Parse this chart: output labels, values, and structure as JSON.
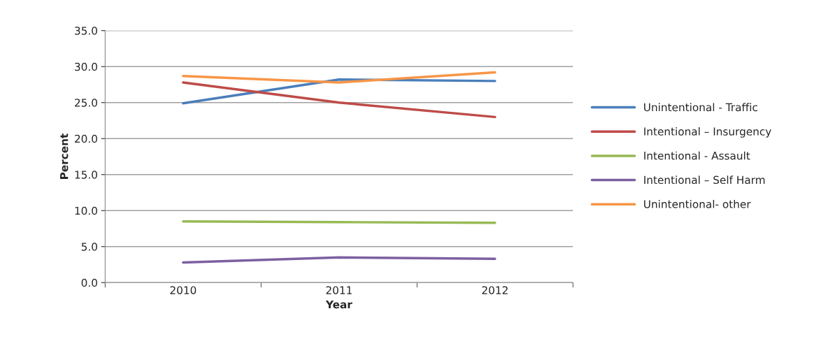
{
  "chart_data": {
    "type": "line",
    "xlabel": "Year",
    "ylabel": "Percent",
    "categories": [
      "2010",
      "2011",
      "2012"
    ],
    "series": [
      {
        "name": "Unintentional - Traffic",
        "color": "#4a7ebb",
        "values": [
          24.9,
          28.2,
          28.0
        ]
      },
      {
        "name": "Intentional – Insurgency",
        "color": "#be4b48",
        "values": [
          27.8,
          25.0,
          23.0
        ]
      },
      {
        "name": "Intentional - Assault",
        "color": "#98b954",
        "values": [
          8.5,
          8.4,
          8.3
        ]
      },
      {
        "name": "Intentional – Self Harm",
        "color": "#7d60a0",
        "values": [
          2.8,
          3.5,
          3.3
        ]
      },
      {
        "name": "Unintentional- other",
        "color": "#f79646",
        "values": [
          28.7,
          27.8,
          29.2
        ]
      }
    ],
    "ylim": [
      0,
      35
    ],
    "yticks": [
      {
        "value": 0,
        "label": "0.0"
      },
      {
        "value": 5,
        "label": "5.0"
      },
      {
        "value": 10,
        "label": "10.0"
      },
      {
        "value": 15,
        "label": "15.0"
      },
      {
        "value": 20,
        "label": "20.0"
      },
      {
        "value": 25,
        "label": "25.0"
      },
      {
        "value": 30,
        "label": "30.0"
      },
      {
        "value": 35,
        "label": "35.0"
      }
    ],
    "grid": "y",
    "legend": "right",
    "marker": "none",
    "line_style": "solid"
  }
}
